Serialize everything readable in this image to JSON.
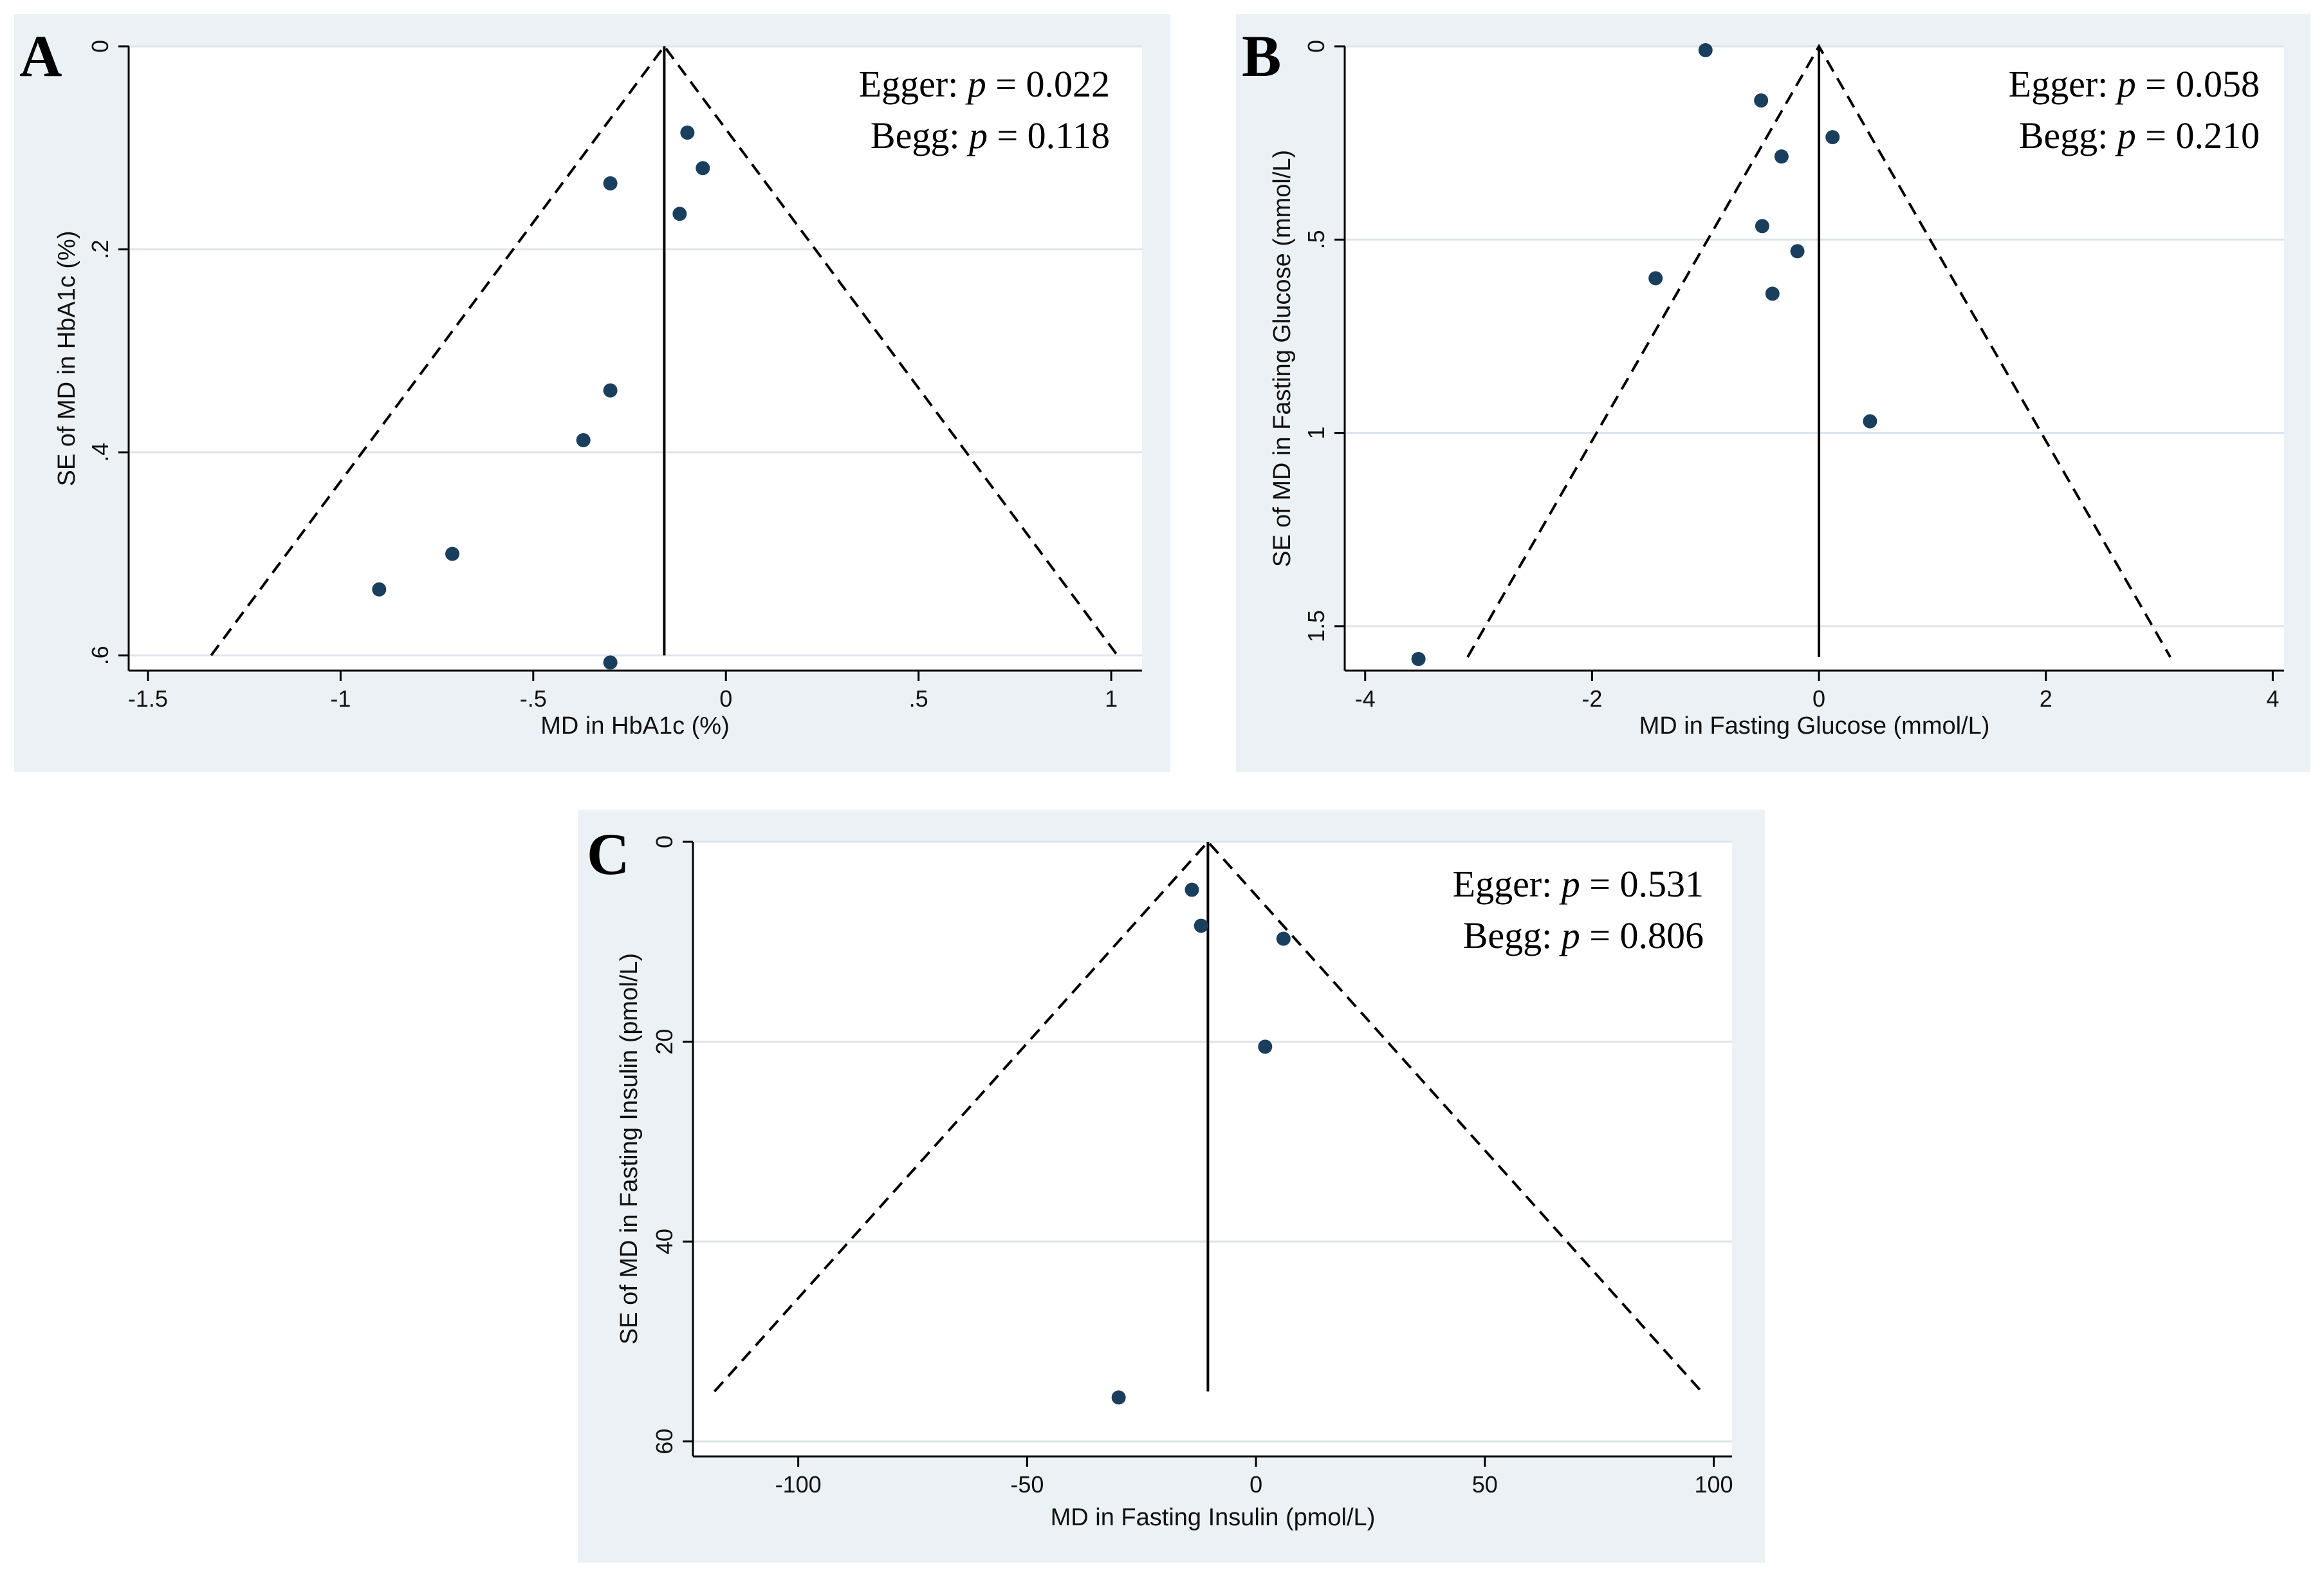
{
  "chart_data": [
    {
      "type": "scatter",
      "subtype": "funnel-plot",
      "panel": "A",
      "xlabel": "MD in HbA1c (%)",
      "ylabel": "SE of MD in HbA1c (%)",
      "xlim": [
        -1.55,
        1.08
      ],
      "ylim": [
        0,
        0.615
      ],
      "x_ticks": [
        -1.5,
        -1,
        -0.5,
        0,
        0.5,
        1
      ],
      "x_tick_labels": [
        "-1.5",
        "-1",
        "-.5",
        "0",
        ".5",
        "1"
      ],
      "y_ticks": [
        0,
        0.2,
        0.4,
        0.6
      ],
      "y_tick_labels": [
        "0",
        ".2",
        ".4",
        ".6"
      ],
      "grid": true,
      "pooled_estimate": -0.16,
      "funnel_se_max": 0.6,
      "funnel_slope": 1.96,
      "points": [
        {
          "x": -0.1,
          "y": 0.085
        },
        {
          "x": -0.06,
          "y": 0.12
        },
        {
          "x": -0.3,
          "y": 0.135
        },
        {
          "x": -0.12,
          "y": 0.165
        },
        {
          "x": -0.3,
          "y": 0.339
        },
        {
          "x": -0.37,
          "y": 0.388
        },
        {
          "x": -0.71,
          "y": 0.5
        },
        {
          "x": -0.9,
          "y": 0.535
        },
        {
          "x": -0.3,
          "y": 0.607
        }
      ],
      "annotations": {
        "egger_label": "Egger: ",
        "egger_p": "p",
        "egger_value": " = 0.022",
        "begg_label": "Begg: ",
        "begg_p": "p",
        "begg_value": " = 0.118"
      }
    },
    {
      "type": "scatter",
      "subtype": "funnel-plot",
      "panel": "B",
      "xlabel": "MD in Fasting Glucose (mmol/L)",
      "ylabel": "SE of MD in Fasting Glucose (mmol/L)",
      "xlim": [
        -4.18,
        4.1
      ],
      "ylim": [
        0,
        1.615
      ],
      "x_ticks": [
        -4,
        -2,
        0,
        2,
        4
      ],
      "x_tick_labels": [
        "-4",
        "-2",
        "0",
        "2",
        "4"
      ],
      "y_ticks": [
        0,
        0.5,
        1,
        1.5
      ],
      "y_tick_labels": [
        "0",
        ".5",
        "1",
        "1.5"
      ],
      "grid": true,
      "pooled_estimate": 0,
      "funnel_se_max": 1.58,
      "funnel_slope": 1.96,
      "points": [
        {
          "x": -1.0,
          "y": 0.01
        },
        {
          "x": -0.51,
          "y": 0.14
        },
        {
          "x": 0.12,
          "y": 0.235
        },
        {
          "x": -0.33,
          "y": 0.285
        },
        {
          "x": -0.5,
          "y": 0.465
        },
        {
          "x": -0.19,
          "y": 0.53
        },
        {
          "x": -1.44,
          "y": 0.6
        },
        {
          "x": -0.41,
          "y": 0.64
        },
        {
          "x": 0.45,
          "y": 0.97
        },
        {
          "x": -3.53,
          "y": 1.585
        }
      ],
      "annotations": {
        "egger_label": "Egger: ",
        "egger_p": "p",
        "egger_value": " = 0.058",
        "begg_label": "Begg: ",
        "begg_p": "p",
        "begg_value": " = 0.210"
      }
    },
    {
      "type": "scatter",
      "subtype": "funnel-plot",
      "panel": "C",
      "xlabel": "MD in Fasting Insulin (pmol/L)",
      "ylabel": "SE of MD in Fasting Insulin (pmol/L)",
      "xlim": [
        -123,
        104
      ],
      "ylim": [
        0,
        61.5
      ],
      "x_ticks": [
        -100,
        -50,
        0,
        50,
        100
      ],
      "x_tick_labels": [
        "-100",
        "-50",
        "0",
        "50",
        "100"
      ],
      "y_ticks": [
        0,
        20,
        40,
        60
      ],
      "y_tick_labels": [
        "0",
        "20",
        "40",
        "60"
      ],
      "grid": true,
      "pooled_estimate": -10.5,
      "funnel_se_max": 55,
      "funnel_slope": 1.96,
      "points": [
        {
          "x": -14,
          "y": 4.8
        },
        {
          "x": -12,
          "y": 8.4
        },
        {
          "x": 6,
          "y": 9.7
        },
        {
          "x": 2,
          "y": 20.5
        },
        {
          "x": -30,
          "y": 55.6
        }
      ],
      "annotations": {
        "egger_label": "Egger: ",
        "egger_p": "p",
        "egger_value": " = 0.531",
        "begg_label": "Begg: ",
        "begg_p": "p",
        "begg_value": " = 0.806"
      }
    }
  ],
  "colors": {
    "panel_background": "#ebf1f4",
    "plot_background": "#ffffff",
    "grid": "#dbe5eb",
    "point": "#1a3f5e",
    "line": "#000000"
  }
}
